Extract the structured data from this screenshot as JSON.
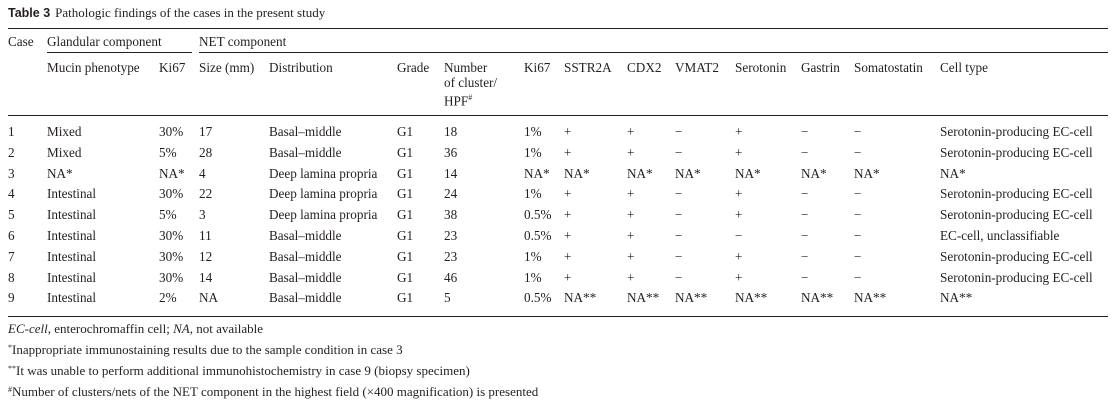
{
  "caption": {
    "label": "Table 3",
    "text": "Pathologic findings of the cases in the present study"
  },
  "groups": {
    "glandular": "Glandular component",
    "net": "NET component"
  },
  "headers": {
    "case": "Case",
    "mucin": "Mucin phenotype",
    "ki67_g": "Ki67",
    "size": "Size (mm)",
    "distribution": "Distribution",
    "grade": "Grade",
    "cluster_1": "Number",
    "cluster_2": "of cluster/",
    "cluster_3": "HPF",
    "cluster_3_sup": "#",
    "ki67_n": "Ki67",
    "sstr2a": "SSTR2A",
    "cdx2": "CDX2",
    "vmat2": "VMAT2",
    "serotonin": "Serotonin",
    "gastrin": "Gastrin",
    "somatostatin": "Somatostatin",
    "cell_type": "Cell type"
  },
  "rows": [
    [
      "1",
      "Mixed",
      "30%",
      "17",
      "Basal–middle",
      "G1",
      "18",
      "1%",
      "+",
      "+",
      "−",
      "+",
      "−",
      "−",
      "Serotonin-producing EC-cell"
    ],
    [
      "2",
      "Mixed",
      "5%",
      "28",
      "Basal–middle",
      "G1",
      "36",
      "1%",
      "+",
      "+",
      "−",
      "+",
      "−",
      "−",
      "Serotonin-producing EC-cell"
    ],
    [
      "3",
      "NA*",
      "NA*",
      "4",
      "Deep lamina propria",
      "G1",
      "14",
      "NA*",
      "NA*",
      "NA*",
      "NA*",
      "NA*",
      "NA*",
      "NA*",
      "NA*"
    ],
    [
      "4",
      "Intestinal",
      "30%",
      "22",
      "Deep lamina propria",
      "G1",
      "24",
      "1%",
      "+",
      "+",
      "−",
      "+",
      "−",
      "−",
      "Serotonin-producing EC-cell"
    ],
    [
      "5",
      "Intestinal",
      "5%",
      "3",
      "Deep lamina propria",
      "G1",
      "38",
      "0.5%",
      "+",
      "+",
      "−",
      "+",
      "−",
      "−",
      "Serotonin-producing EC-cell"
    ],
    [
      "6",
      "Intestinal",
      "30%",
      "11",
      "Basal–middle",
      "G1",
      "23",
      "0.5%",
      "+",
      "+",
      "−",
      "−",
      "−",
      "−",
      "EC-cell, unclassifiable"
    ],
    [
      "7",
      "Intestinal",
      "30%",
      "12",
      "Basal–middle",
      "G1",
      "23",
      "1%",
      "+",
      "+",
      "−",
      "+",
      "−",
      "−",
      "Serotonin-producing EC-cell"
    ],
    [
      "8",
      "Intestinal",
      "30%",
      "14",
      "Basal–middle",
      "G1",
      "46",
      "1%",
      "+",
      "+",
      "−",
      "+",
      "−",
      "−",
      "Serotonin-producing EC-cell"
    ],
    [
      "9",
      "Intestinal",
      "2%",
      "NA",
      "Basal–middle",
      "G1",
      "5",
      "0.5%",
      "NA**",
      "NA**",
      "NA**",
      "NA**",
      "NA**",
      "NA**",
      "NA**"
    ]
  ],
  "footnotes": {
    "abbr_ec": "EC-cell",
    "abbr_ec_def": ", enterochromaffin cell; ",
    "abbr_na": "NA",
    "abbr_na_def": ", not available",
    "f1_mark": "*",
    "f1_text": "Inappropriate immunostaining results due to the sample condition in case 3",
    "f2_mark": "**",
    "f2_text": "It was unable to perform additional immunohistochemistry in case 9 (biopsy specimen)",
    "f3_mark": "#",
    "f3_text": "Number of clusters/nets of the NET component in the highest field (×400 magnification) is presented"
  }
}
